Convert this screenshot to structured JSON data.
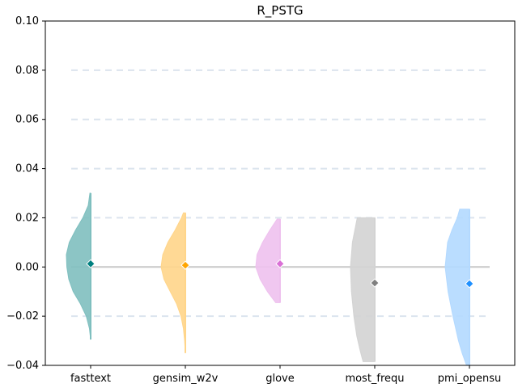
{
  "chart_data": {
    "type": "violin",
    "title": "R_PSTG",
    "xlabel": "",
    "ylabel": "",
    "ylim": [
      -0.04,
      0.1
    ],
    "yticks": [
      -0.04,
      -0.02,
      0.0,
      0.02,
      0.04,
      0.06,
      0.08,
      0.1
    ],
    "ytick_labels": [
      "−0.04",
      "−0.02",
      "0.00",
      "0.02",
      "0.04",
      "0.06",
      "0.08",
      "0.10"
    ],
    "grid": "horizontal dashed",
    "reference_line": 0.0,
    "categories": [
      "fasttext",
      "gensim_w2v",
      "glove",
      "most_frequ",
      "pmi_opensu"
    ],
    "series": [
      {
        "category": "fasttext",
        "color": "#7fbfbf",
        "marker_color": "#008080",
        "mean": 0.0013,
        "min": -0.0295,
        "max": 0.03,
        "profile": [
          [
            -0.0295,
            0.0
          ],
          [
            -0.025,
            0.05
          ],
          [
            -0.02,
            0.18
          ],
          [
            -0.015,
            0.42
          ],
          [
            -0.01,
            0.72
          ],
          [
            -0.005,
            0.9
          ],
          [
            0.0,
            0.98
          ],
          [
            0.005,
            1.0
          ],
          [
            0.01,
            0.88
          ],
          [
            0.015,
            0.62
          ],
          [
            0.02,
            0.32
          ],
          [
            0.025,
            0.1
          ],
          [
            0.03,
            0.03
          ]
        ]
      },
      {
        "category": "gensim_w2v",
        "color": "#ffd58a",
        "marker_color": "#ffa500",
        "mean": 0.0007,
        "min": -0.035,
        "max": 0.022,
        "profile": [
          [
            -0.035,
            0.0
          ],
          [
            -0.03,
            0.03
          ],
          [
            -0.025,
            0.08
          ],
          [
            -0.02,
            0.18
          ],
          [
            -0.015,
            0.36
          ],
          [
            -0.01,
            0.62
          ],
          [
            -0.005,
            0.88
          ],
          [
            0.0,
            1.0
          ],
          [
            0.005,
            0.93
          ],
          [
            0.01,
            0.72
          ],
          [
            0.015,
            0.42
          ],
          [
            0.02,
            0.16
          ],
          [
            0.022,
            0.08
          ]
        ]
      },
      {
        "category": "glove",
        "color": "#eec1ee",
        "marker_color": "#da70d6",
        "mean": 0.0013,
        "min": -0.0145,
        "max": 0.0195,
        "profile": [
          [
            -0.0145,
            0.18
          ],
          [
            -0.01,
            0.52
          ],
          [
            -0.005,
            0.82
          ],
          [
            0.0,
            1.0
          ],
          [
            0.005,
            0.95
          ],
          [
            0.01,
            0.72
          ],
          [
            0.015,
            0.42
          ],
          [
            0.0195,
            0.12
          ]
        ]
      },
      {
        "category": "most_frequ",
        "color": "#d3d3d3",
        "marker_color": "#808080",
        "mean": -0.0065,
        "min": -0.0385,
        "max": 0.02,
        "profile": [
          [
            -0.0385,
            0.48
          ],
          [
            -0.034,
            0.6
          ],
          [
            -0.028,
            0.74
          ],
          [
            -0.02,
            0.86
          ],
          [
            -0.01,
            0.96
          ],
          [
            0.0,
            1.0
          ],
          [
            0.01,
            0.92
          ],
          [
            0.016,
            0.8
          ],
          [
            0.02,
            0.72
          ]
        ]
      },
      {
        "category": "pmi_opensu",
        "color": "#b3d9ff",
        "marker_color": "#1e90ff",
        "mean": -0.0068,
        "min": -0.04,
        "max": 0.0235,
        "profile": [
          [
            -0.04,
            0.12
          ],
          [
            -0.035,
            0.3
          ],
          [
            -0.03,
            0.45
          ],
          [
            -0.02,
            0.68
          ],
          [
            -0.01,
            0.88
          ],
          [
            0.0,
            1.0
          ],
          [
            0.01,
            0.9
          ],
          [
            0.015,
            0.72
          ],
          [
            0.02,
            0.5
          ],
          [
            0.0235,
            0.4
          ]
        ]
      }
    ]
  }
}
